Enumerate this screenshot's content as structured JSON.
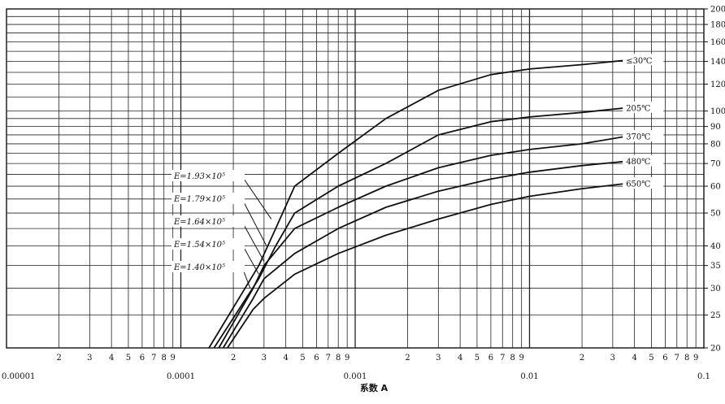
{
  "chart_data": {
    "type": "line",
    "x_scale": "log",
    "y_scale": "log",
    "xlim": [
      1e-05,
      0.1
    ],
    "ylim": [
      20,
      200
    ],
    "grid": true,
    "xlabel": "系数 A",
    "x_decade_labels": [
      "0.00001",
      "0.0001",
      "0.001",
      "0.01",
      "0.1"
    ],
    "x_minor_labels": [
      "2",
      "3",
      "4",
      "5",
      "6",
      "7",
      "8",
      "9"
    ],
    "y_ticks": [
      "20",
      "25",
      "30",
      "35",
      "40",
      "50",
      "60",
      "70",
      "80",
      "90",
      "100",
      "120",
      "140",
      "160",
      "180",
      "200"
    ],
    "series": [
      {
        "name": "≤30℃",
        "points": [
          [
            0.000145,
            20
          ],
          [
            0.00028,
            35
          ],
          [
            0.00035,
            45
          ],
          [
            0.00045,
            60
          ],
          [
            0.0008,
            75
          ],
          [
            0.0015,
            95
          ],
          [
            0.003,
            115
          ],
          [
            0.006,
            128
          ],
          [
            0.01,
            133
          ],
          [
            0.02,
            137
          ],
          [
            0.035,
            141
          ]
        ]
      },
      {
        "name": "205℃",
        "points": [
          [
            0.000155,
            20
          ],
          [
            0.00028,
            32
          ],
          [
            0.00035,
            40
          ],
          [
            0.00045,
            50
          ],
          [
            0.0008,
            60
          ],
          [
            0.0015,
            70
          ],
          [
            0.003,
            85
          ],
          [
            0.006,
            93
          ],
          [
            0.01,
            96
          ],
          [
            0.02,
            99
          ],
          [
            0.035,
            102
          ]
        ]
      },
      {
        "name": "370℃",
        "points": [
          [
            0.000165,
            20
          ],
          [
            0.00026,
            30
          ],
          [
            0.0003,
            35
          ],
          [
            0.00045,
            45
          ],
          [
            0.0008,
            52
          ],
          [
            0.0015,
            60
          ],
          [
            0.003,
            68
          ],
          [
            0.006,
            74
          ],
          [
            0.01,
            77
          ],
          [
            0.02,
            80
          ],
          [
            0.035,
            84
          ]
        ]
      },
      {
        "name": "480℃",
        "points": [
          [
            0.000175,
            20
          ],
          [
            0.00026,
            28
          ],
          [
            0.0003,
            32
          ],
          [
            0.00045,
            38
          ],
          [
            0.0008,
            45
          ],
          [
            0.0015,
            52
          ],
          [
            0.003,
            58
          ],
          [
            0.006,
            63
          ],
          [
            0.01,
            66
          ],
          [
            0.02,
            69
          ],
          [
            0.035,
            71
          ]
        ]
      },
      {
        "name": "650℃",
        "points": [
          [
            0.000185,
            20
          ],
          [
            0.00026,
            26
          ],
          [
            0.0003,
            28
          ],
          [
            0.00045,
            33
          ],
          [
            0.0008,
            38
          ],
          [
            0.0015,
            43
          ],
          [
            0.003,
            48
          ],
          [
            0.006,
            53
          ],
          [
            0.01,
            56
          ],
          [
            0.02,
            59
          ],
          [
            0.035,
            61
          ]
        ]
      }
    ],
    "annotations": [
      {
        "text": "E=1.93×10⁵",
        "target": [
          0.00033,
          48
        ]
      },
      {
        "text": "E=1.79×10⁵",
        "target": [
          0.00031,
          40
        ]
      },
      {
        "text": "E=1.64×10⁵",
        "target": [
          0.0003,
          36
        ]
      },
      {
        "text": "E=1.54×10⁵",
        "target": [
          0.00028,
          33
        ]
      },
      {
        "text": "E=1.40×10⁵",
        "target": [
          0.00025,
          30
        ]
      }
    ]
  }
}
